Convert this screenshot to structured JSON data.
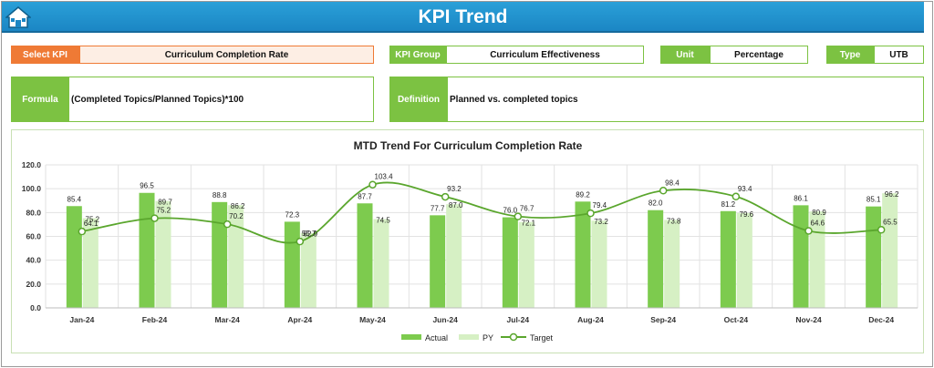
{
  "header": {
    "title": "KPI Trend",
    "home_icon": "home-icon"
  },
  "fields": {
    "select_kpi_label": "Select KPI",
    "select_kpi_value": "Curriculum Completion Rate",
    "kpi_group_label": "KPI Group",
    "kpi_group_value": "Curriculum Effectiveness",
    "unit_label": "Unit",
    "unit_value": "Percentage",
    "type_label": "Type",
    "type_value": "UTB",
    "formula_label": "Formula",
    "formula_value": "(Completed Topics/Planned Topics)*100",
    "definition_label": "Definition",
    "definition_value": "Planned vs. completed topics"
  },
  "colors": {
    "actual": "#7dcb4e",
    "py": "#d6f0c4",
    "target": "#5aa62d",
    "accent_orange": "#ef7a35",
    "header_blue": "#1f8fcc"
  },
  "chart_data": {
    "type": "bar",
    "title": "MTD Trend For Curriculum Completion Rate",
    "categories": [
      "Jan-24",
      "Feb-24",
      "Mar-24",
      "Apr-24",
      "May-24",
      "Jun-24",
      "Jul-24",
      "Aug-24",
      "Sep-24",
      "Oct-24",
      "Nov-24",
      "Dec-24"
    ],
    "series": [
      {
        "name": "Actual",
        "kind": "bar",
        "values": [
          85.4,
          96.5,
          88.8,
          72.3,
          87.7,
          77.7,
          76.0,
          89.2,
          82.0,
          81.2,
          86.1,
          85.1
        ]
      },
      {
        "name": "PY",
        "kind": "bar",
        "values": [
          75.2,
          89.7,
          86.2,
          62.9,
          74.5,
          87.0,
          72.1,
          73.2,
          73.8,
          79.6,
          80.9,
          96.2
        ]
      },
      {
        "name": "Target",
        "kind": "line",
        "values": [
          64.1,
          75.2,
          70.2,
          55.7,
          103.4,
          93.2,
          76.7,
          79.4,
          98.4,
          93.4,
          64.6,
          65.5
        ]
      }
    ],
    "ylim": [
      0,
      120
    ],
    "yticks": [
      "0.0",
      "20.0",
      "40.0",
      "60.0",
      "80.0",
      "100.0",
      "120.0"
    ],
    "legend_position": "bottom",
    "grid": true
  }
}
